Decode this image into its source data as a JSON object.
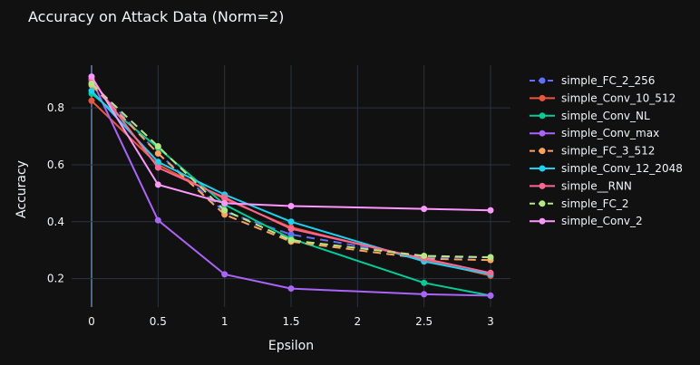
{
  "chart_data": {
    "type": "line",
    "title": "Accuracy on Attack Data (Norm=2)",
    "xlabel": "Epsilon",
    "ylabel": "Accuracy",
    "xlim": [
      -0.15,
      3.15
    ],
    "ylim": [
      0.1,
      0.95
    ],
    "x_ticks": [
      0,
      0.5,
      1,
      1.5,
      2,
      2.5,
      3
    ],
    "x_tick_labels": [
      "0",
      "0.5",
      "1",
      "1.5",
      "2",
      "2.5",
      "3"
    ],
    "y_ticks": [
      0.2,
      0.4,
      0.6,
      0.8
    ],
    "y_tick_labels": [
      "0.2",
      "0.4",
      "0.6",
      "0.8"
    ],
    "grid": true,
    "legend_position": "right",
    "x": [
      0,
      0.5,
      1,
      1.5,
      2.5,
      3
    ],
    "series": [
      {
        "name": "simple_FC_2_256",
        "color": "#636efa",
        "dash": "dash",
        "values": [
          0.89,
          0.64,
          0.435,
          0.355,
          0.275,
          0.275
        ]
      },
      {
        "name": "simple_Conv_10_512",
        "color": "#ef553b",
        "dash": "solid",
        "values": [
          0.825,
          0.6,
          0.48,
          0.38,
          0.265,
          0.21
        ]
      },
      {
        "name": "simple_Conv_NL",
        "color": "#00cc96",
        "dash": "solid",
        "values": [
          0.85,
          0.66,
          0.46,
          0.34,
          0.185,
          0.14
        ]
      },
      {
        "name": "simple_Conv_max",
        "color": "#ab63fa",
        "dash": "solid",
        "values": [
          0.9,
          0.405,
          0.215,
          0.165,
          0.145,
          0.14
        ]
      },
      {
        "name": "simple_FC_3_512",
        "color": "#ffa15a",
        "dash": "dash",
        "values": [
          0.88,
          0.64,
          0.425,
          0.33,
          0.27,
          0.265
        ]
      },
      {
        "name": "simple_Conv_12_2048",
        "color": "#19d3f3",
        "dash": "solid",
        "values": [
          0.86,
          0.61,
          0.495,
          0.4,
          0.26,
          0.215
        ]
      },
      {
        "name": "simple__RNN",
        "color": "#ff6692",
        "dash": "solid",
        "values": [
          0.9,
          0.59,
          0.485,
          0.375,
          0.27,
          0.22
        ]
      },
      {
        "name": "simple_FC_2",
        "color": "#b6e880",
        "dash": "dash",
        "values": [
          0.885,
          0.665,
          0.44,
          0.335,
          0.28,
          0.275
        ]
      },
      {
        "name": "simple_Conv_2",
        "color": "#ff97ff",
        "dash": "solid",
        "values": [
          0.91,
          0.53,
          0.465,
          0.455,
          0.445,
          0.44
        ]
      }
    ]
  }
}
